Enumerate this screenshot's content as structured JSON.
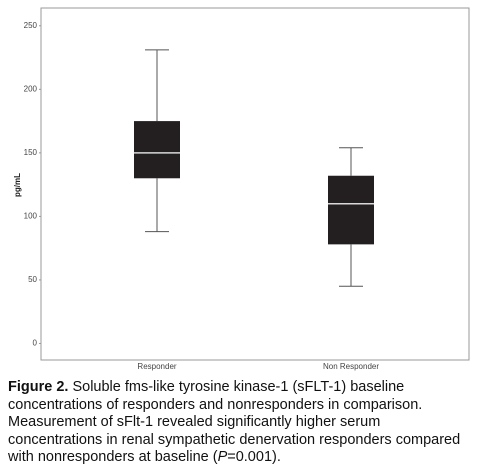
{
  "chart_data": {
    "type": "box",
    "ylabel": "pg/mL",
    "categories": [
      "Responder",
      "Non Responder"
    ],
    "boxes": [
      {
        "whisker_low": 88,
        "q1": 130,
        "median": 150,
        "q3": 175,
        "whisker_high": 231
      },
      {
        "whisker_low": 45,
        "q1": 78,
        "median": 110,
        "q3": 132,
        "whisker_high": 154
      }
    ],
    "color": "#231f20",
    "median_color": "#d9d9d9",
    "ylim": [
      -13,
      264
    ],
    "yticks": [
      0,
      50,
      100,
      150,
      200,
      250
    ]
  },
  "caption": {
    "label": "Figure 2.",
    "text": " Soluble fms-like tyrosine kinase-1 (sFLT-1) baseline concentrations of responders and nonresponders in comparison. Measurement of sFlt-1 revealed significantly higher serum concentrations in renal sympathetic denervation responders compared with nonresponders at baseline (",
    "italic": "P",
    "end": "=0.001)."
  }
}
